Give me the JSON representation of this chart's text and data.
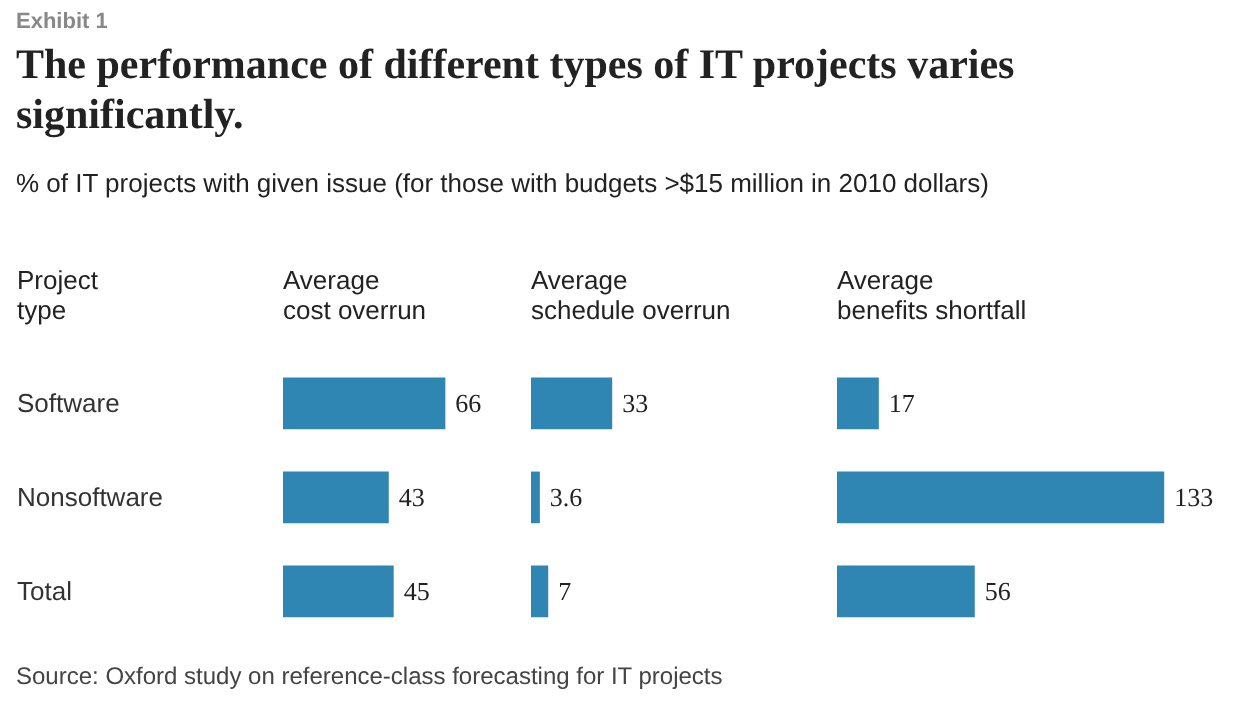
{
  "chart_data": [
    {
      "type": "bar",
      "orientation": "horizontal",
      "title": "The performance of different types of IT projects varies significantly.",
      "subtitle": "% of IT projects with given issue (for those with budgets >$15 million in 2010 dollars)",
      "annotations": [
        "Exhibit 1",
        "Source: Oxford study on reference-class forecasting for IT projects"
      ],
      "ylabel": "Project\ntype",
      "xlabel": "Average\ncost overrun",
      "categories": [
        "Software",
        "Nonsoftware",
        "Total"
      ],
      "values": [
        66,
        43,
        45
      ],
      "color": "#2f86b3",
      "data_labels": true,
      "tick_labels": "y",
      "grid": false
    },
    {
      "type": "bar",
      "orientation": "horizontal",
      "xlabel": "Average\nschedule overrun",
      "categories": [
        null,
        null,
        null
      ],
      "values": [
        33,
        3.6,
        7
      ],
      "color": "#2f86b3",
      "data_labels": true,
      "tick_labels": false,
      "grid": false
    },
    {
      "type": "bar",
      "orientation": "horizontal",
      "xlabel": "Average\nbenefits shortfall",
      "categories": [
        null,
        null,
        null
      ],
      "values": [
        17,
        133,
        56
      ],
      "color": "#2f86b3",
      "data_labels": true,
      "tick_labels": false,
      "grid": false
    }
  ]
}
